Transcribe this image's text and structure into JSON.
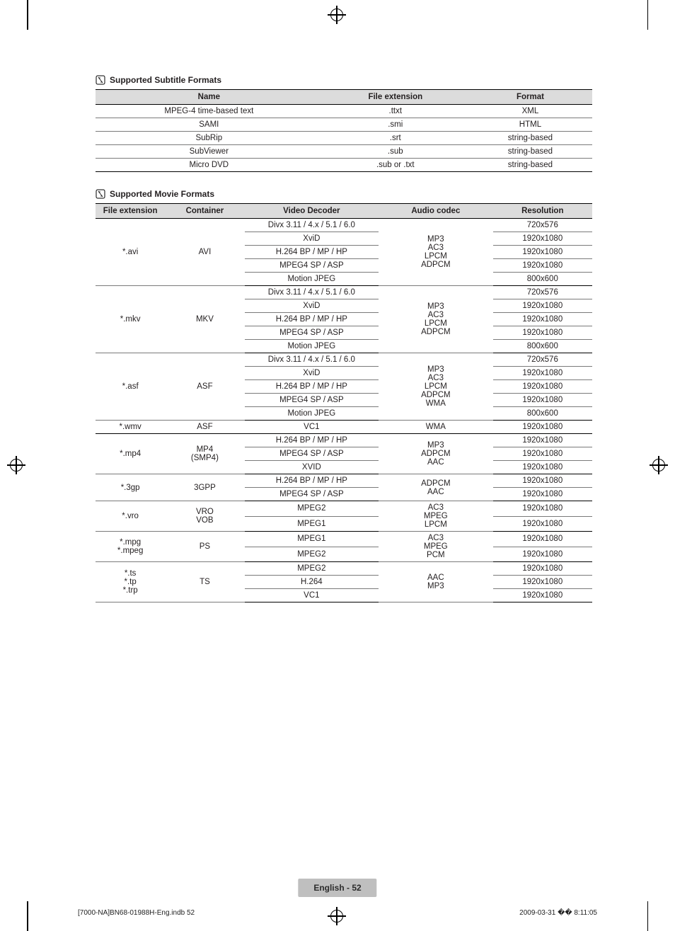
{
  "section1": {
    "title": "Supported Subtitle Formats"
  },
  "section2": {
    "title": "Supported Movie Formats"
  },
  "subtitle_table": {
    "headers": [
      "Name",
      "File extension",
      "Format"
    ],
    "rows": [
      [
        "MPEG-4 time-based text",
        ".ttxt",
        "XML"
      ],
      [
        "SAMI",
        ".smi",
        "HTML"
      ],
      [
        "SubRip",
        ".srt",
        "string-based"
      ],
      [
        "SubViewer",
        ".sub",
        "string-based"
      ],
      [
        "Micro DVD",
        ".sub or .txt",
        "string-based"
      ]
    ]
  },
  "movie_table": {
    "headers": [
      "File extension",
      "Container",
      "Video Decoder",
      "Audio codec",
      "Resolution"
    ],
    "groups": [
      {
        "ext": "*.avi",
        "container": "AVI",
        "decoders": [
          "Divx 3.11 / 4.x / 5.1 / 6.0",
          "XviD",
          "H.264 BP / MP / HP",
          "MPEG4 SP / ASP",
          "Motion JPEG"
        ],
        "audio": "MP3\nAC3\nLPCM\nADPCM",
        "res": [
          "720x576",
          "1920x1080",
          "1920x1080",
          "1920x1080",
          "800x600"
        ]
      },
      {
        "ext": "*.mkv",
        "container": "MKV",
        "decoders": [
          "Divx 3.11 / 4.x / 5.1 / 6.0",
          "XviD",
          "H.264 BP / MP / HP",
          "MPEG4 SP / ASP",
          "Motion JPEG"
        ],
        "audio": "MP3\nAC3\nLPCM\nADPCM",
        "res": [
          "720x576",
          "1920x1080",
          "1920x1080",
          "1920x1080",
          "800x600"
        ]
      },
      {
        "ext": "*.asf",
        "container": "ASF",
        "decoders": [
          "Divx 3.11 / 4.x / 5.1 / 6.0",
          "XviD",
          "H.264 BP / MP / HP",
          "MPEG4 SP / ASP",
          "Motion JPEG"
        ],
        "audio": "MP3\nAC3\nLPCM\nADPCM\nWMA",
        "res": [
          "720x576",
          "1920x1080",
          "1920x1080",
          "1920x1080",
          "800x600"
        ]
      },
      {
        "ext": "*.wmv",
        "container": "ASF",
        "decoders": [
          "VC1"
        ],
        "audio": "WMA",
        "res": [
          "1920x1080"
        ]
      },
      {
        "ext": "*.mp4",
        "container": "MP4\n(SMP4)",
        "decoders": [
          "H.264 BP / MP / HP",
          "MPEG4 SP / ASP",
          "XVID"
        ],
        "audio": "MP3\nADPCM\nAAC",
        "res": [
          "1920x1080",
          "1920x1080",
          "1920x1080"
        ]
      },
      {
        "ext": "*.3gp",
        "container": "3GPP",
        "decoders": [
          "H.264 BP / MP / HP",
          "MPEG4 SP / ASP"
        ],
        "audio": "ADPCM\nAAC",
        "res": [
          "1920x1080",
          "1920x1080"
        ]
      },
      {
        "ext": "*.vro",
        "container": "VRO\nVOB",
        "decoders": [
          "MPEG2",
          "MPEG1"
        ],
        "audio": "AC3\nMPEG\nLPCM",
        "res": [
          "1920x1080",
          "1920x1080"
        ]
      },
      {
        "ext": "*.mpg\n*.mpeg",
        "container": "PS",
        "decoders": [
          "MPEG1",
          "MPEG2"
        ],
        "audio": "AC3\nMPEG\nPCM",
        "res": [
          "1920x1080",
          "1920x1080"
        ]
      },
      {
        "ext": "*.ts\n*.tp\n*.trp",
        "container": "TS",
        "decoders": [
          "MPEG2",
          "H.264",
          "VC1"
        ],
        "audio": "AAC\nMP3",
        "res": [
          "1920x1080",
          "1920x1080",
          "1920x1080"
        ]
      }
    ]
  },
  "badge": {
    "lang": "English",
    "sep": " - ",
    "page": "52"
  },
  "footer": {
    "left": "[7000-NA]BN68-01988H-Eng.indb   52",
    "right": "2009-03-31   �� 8:11:05"
  }
}
